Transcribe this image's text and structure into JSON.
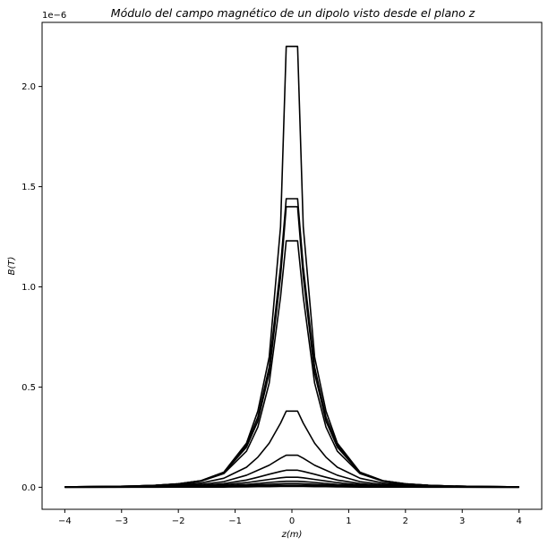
{
  "chart_data": {
    "type": "line",
    "title": "Módulo del campo magnético de un dipolo visto desde el plano z",
    "xlabel": "z(m)",
    "ylabel": "B(T)",
    "offset_label": "1e−6",
    "xlim": [
      -4.4,
      4.4
    ],
    "ylim": [
      -0.11,
      2.32
    ],
    "xticks": [
      -4,
      -3,
      -2,
      -1,
      0,
      1,
      2,
      3,
      4
    ],
    "xtick_labels": [
      "−4",
      "−3",
      "−2",
      "−1",
      "0",
      "1",
      "2",
      "3",
      "4"
    ],
    "yticks": [
      0,
      0.5,
      1.0,
      1.5,
      2.0
    ],
    "ytick_labels": [
      "0.0",
      "0.5",
      "1.0",
      "1.5",
      "2.0"
    ],
    "grid": false,
    "line_color": "#000000",
    "x": [
      -4.0,
      -3.6,
      -3.2,
      -2.8,
      -2.4,
      -2.0,
      -1.6,
      -1.2,
      -0.8,
      -0.6,
      -0.4,
      -0.2,
      -0.1,
      0.1,
      0.2,
      0.4,
      0.6,
      0.8,
      1.2,
      1.6,
      2.0,
      2.4,
      2.8,
      3.2,
      3.6,
      4.0
    ],
    "series": [
      {
        "peak": 2.2,
        "values": [
          0.002,
          0.003,
          0.004,
          0.006,
          0.01,
          0.017,
          0.033,
          0.075,
          0.22,
          0.38,
          0.65,
          1.3,
          2.2,
          2.2,
          1.3,
          0.65,
          0.38,
          0.22,
          0.075,
          0.033,
          0.017,
          0.01,
          0.006,
          0.004,
          0.003,
          0.002
        ]
      },
      {
        "peak": 1.44,
        "values": [
          0.002,
          0.003,
          0.004,
          0.006,
          0.01,
          0.017,
          0.033,
          0.075,
          0.21,
          0.35,
          0.6,
          1.1,
          1.44,
          1.44,
          1.1,
          0.6,
          0.35,
          0.21,
          0.075,
          0.033,
          0.017,
          0.01,
          0.006,
          0.004,
          0.003,
          0.002
        ]
      },
      {
        "peak": 1.4,
        "values": [
          0.002,
          0.003,
          0.004,
          0.006,
          0.01,
          0.017,
          0.032,
          0.072,
          0.2,
          0.33,
          0.57,
          1.05,
          1.4,
          1.4,
          1.05,
          0.57,
          0.33,
          0.2,
          0.072,
          0.032,
          0.017,
          0.01,
          0.006,
          0.004,
          0.003,
          0.002
        ]
      },
      {
        "peak": 1.23,
        "values": [
          0.002,
          0.003,
          0.004,
          0.006,
          0.01,
          0.016,
          0.03,
          0.068,
          0.18,
          0.3,
          0.52,
          0.95,
          1.23,
          1.23,
          0.95,
          0.52,
          0.3,
          0.18,
          0.068,
          0.03,
          0.016,
          0.01,
          0.006,
          0.004,
          0.003,
          0.002
        ]
      },
      {
        "peak": 0.38,
        "values": [
          0.001,
          0.002,
          0.003,
          0.004,
          0.007,
          0.012,
          0.021,
          0.045,
          0.1,
          0.15,
          0.22,
          0.32,
          0.38,
          0.38,
          0.32,
          0.22,
          0.15,
          0.1,
          0.045,
          0.021,
          0.012,
          0.007,
          0.004,
          0.003,
          0.002,
          0.001
        ]
      },
      {
        "peak": 0.16,
        "values": [
          0.001,
          0.002,
          0.002,
          0.003,
          0.005,
          0.008,
          0.014,
          0.028,
          0.06,
          0.085,
          0.11,
          0.145,
          0.16,
          0.16,
          0.145,
          0.11,
          0.085,
          0.06,
          0.028,
          0.014,
          0.008,
          0.005,
          0.003,
          0.002,
          0.002,
          0.001
        ]
      },
      {
        "peak": 0.085,
        "values": [
          0.001,
          0.001,
          0.002,
          0.002,
          0.003,
          0.005,
          0.009,
          0.018,
          0.036,
          0.05,
          0.065,
          0.079,
          0.085,
          0.085,
          0.079,
          0.065,
          0.05,
          0.036,
          0.018,
          0.009,
          0.005,
          0.003,
          0.002,
          0.002,
          0.001,
          0.001
        ]
      },
      {
        "peak": 0.05,
        "values": [
          0.001,
          0.001,
          0.001,
          0.002,
          0.002,
          0.004,
          0.006,
          0.012,
          0.023,
          0.031,
          0.039,
          0.047,
          0.05,
          0.05,
          0.047,
          0.039,
          0.031,
          0.023,
          0.012,
          0.006,
          0.004,
          0.002,
          0.002,
          0.001,
          0.001,
          0.001
        ]
      },
      {
        "peak": 0.03,
        "values": [
          0.0,
          0.001,
          0.001,
          0.001,
          0.002,
          0.003,
          0.004,
          0.008,
          0.014,
          0.019,
          0.024,
          0.028,
          0.03,
          0.03,
          0.028,
          0.024,
          0.019,
          0.014,
          0.008,
          0.004,
          0.003,
          0.002,
          0.001,
          0.001,
          0.001,
          0.0
        ]
      },
      {
        "peak": 0.018,
        "values": [
          0.0,
          0.0,
          0.001,
          0.001,
          0.001,
          0.002,
          0.003,
          0.005,
          0.009,
          0.012,
          0.015,
          0.017,
          0.018,
          0.018,
          0.017,
          0.015,
          0.012,
          0.009,
          0.005,
          0.003,
          0.002,
          0.001,
          0.001,
          0.001,
          0.0,
          0.0
        ]
      },
      {
        "peak": 0.01,
        "values": [
          0.0,
          0.0,
          0.0,
          0.001,
          0.001,
          0.001,
          0.002,
          0.003,
          0.005,
          0.007,
          0.008,
          0.009,
          0.01,
          0.01,
          0.009,
          0.008,
          0.007,
          0.005,
          0.003,
          0.002,
          0.001,
          0.001,
          0.001,
          0.0,
          0.0,
          0.0
        ]
      },
      {
        "peak": 0.004,
        "values": [
          0.0,
          0.0,
          0.0,
          0.0,
          0.0,
          0.001,
          0.001,
          0.001,
          0.002,
          0.003,
          0.003,
          0.004,
          0.004,
          0.004,
          0.004,
          0.003,
          0.003,
          0.002,
          0.001,
          0.001,
          0.001,
          0.0,
          0.0,
          0.0,
          0.0,
          0.0
        ]
      }
    ]
  }
}
